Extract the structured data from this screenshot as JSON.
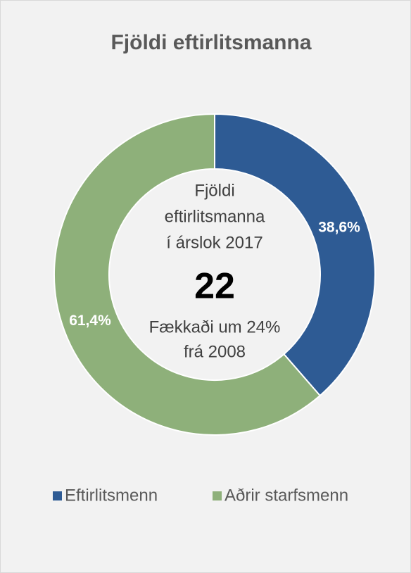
{
  "chart_data": {
    "type": "pie",
    "donut": true,
    "title": "Fjöldi eftirlitsmanna",
    "categories": [
      "Eftirlitsmenn",
      "Aðrir starfsmenn"
    ],
    "values": [
      38.6,
      61.4
    ],
    "value_labels": [
      "38,6%",
      "61,4%"
    ],
    "colors": [
      "#2e5b94",
      "#8eb07a"
    ],
    "center_text": [
      "Fjöldi",
      "eftirlitsmanna",
      "í árslok 2017"
    ],
    "center_value": 22,
    "center_subtext": [
      "Fækkaði um 24%",
      "frá 2008"
    ],
    "legend": "bottom"
  }
}
